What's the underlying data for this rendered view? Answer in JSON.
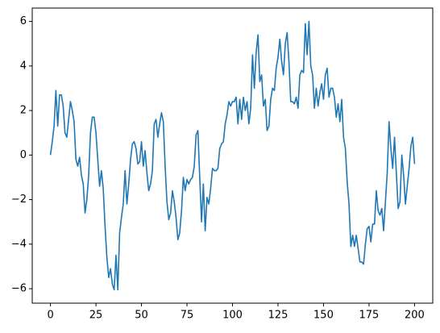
{
  "chart_data": {
    "type": "line",
    "color": "#1f77b4",
    "x": [
      0,
      1,
      2,
      3,
      4,
      5,
      6,
      7,
      8,
      9,
      10,
      11,
      12,
      13,
      14,
      15,
      16,
      17,
      18,
      19,
      20,
      21,
      22,
      23,
      24,
      25,
      26,
      27,
      28,
      29,
      30,
      31,
      32,
      33,
      34,
      35,
      36,
      37,
      38,
      39,
      40,
      41,
      42,
      43,
      44,
      45,
      46,
      47,
      48,
      49,
      50,
      51,
      52,
      53,
      54,
      55,
      56,
      57,
      58,
      59,
      60,
      61,
      62,
      63,
      64,
      65,
      66,
      67,
      68,
      69,
      70,
      71,
      72,
      73,
      74,
      75,
      76,
      77,
      78,
      79,
      80,
      81,
      82,
      83,
      84,
      85,
      86,
      87,
      88,
      89,
      90,
      91,
      92,
      93,
      94,
      95,
      96,
      97,
      98,
      99,
      100,
      101,
      102,
      103,
      104,
      105,
      106,
      107,
      108,
      109,
      110,
      111,
      112,
      113,
      114,
      115,
      116,
      117,
      118,
      119,
      120,
      121,
      122,
      123,
      124,
      125,
      126,
      127,
      128,
      129,
      130,
      131,
      132,
      133,
      134,
      135,
      136,
      137,
      138,
      139,
      140,
      141,
      142,
      143,
      144,
      145,
      146,
      147,
      148,
      149,
      150,
      151,
      152,
      153,
      154,
      155,
      156,
      157,
      158,
      159,
      160,
      161,
      162,
      163,
      164,
      165,
      166,
      167,
      168,
      169,
      170,
      171,
      172,
      173,
      174,
      175,
      176,
      177,
      178,
      179,
      180,
      181,
      182,
      183,
      184,
      185,
      186,
      187,
      188,
      189,
      190,
      191,
      192,
      193,
      194,
      195,
      196,
      197,
      198,
      199,
      200
    ],
    "values": [
      0,
      0.6,
      1.3,
      2.9,
      1.3,
      2.7,
      2.7,
      2.2,
      1.0,
      0.8,
      1.6,
      2.4,
      2.0,
      1.5,
      -0.2,
      -0.5,
      -0.1,
      -0.9,
      -1.3,
      -2.6,
      -2.0,
      -0.9,
      1.0,
      1.7,
      1.7,
      1.0,
      -0.2,
      -1.4,
      -0.7,
      -1.5,
      -3.2,
      -4.6,
      -5.5,
      -5.1,
      -5.8,
      -6.05,
      -4.5,
      -6.05,
      -3.5,
      -2.8,
      -2.2,
      -0.7,
      -2.2,
      -1.3,
      -0.2,
      0.5,
      0.6,
      0.3,
      -0.4,
      -0.3,
      0.6,
      -0.5,
      0.2,
      -0.8,
      -1.6,
      -1.3,
      -0.7,
      1.4,
      1.6,
      0.8,
      1.4,
      1.9,
      1.5,
      -0.5,
      -2.1,
      -2.9,
      -2.6,
      -1.6,
      -2.1,
      -2.8,
      -3.8,
      -3.5,
      -2.5,
      -1.0,
      -1.6,
      -1.1,
      -1.3,
      -1.1,
      -1.0,
      -0.5,
      0.9,
      1.1,
      -1.0,
      -3.0,
      -1.3,
      -3.4,
      -1.9,
      -2.2,
      -1.5,
      -0.6,
      -0.7,
      -0.7,
      -0.6,
      0.3,
      0.5,
      0.6,
      1.4,
      1.8,
      2.4,
      2.2,
      2.4,
      2.4,
      2.6,
      1.4,
      2.5,
      1.6,
      2.6,
      2.0,
      2.4,
      1.4,
      2.1,
      4.5,
      3.0,
      4.6,
      5.4,
      3.3,
      3.6,
      2.2,
      2.5,
      1.1,
      1.3,
      2.5,
      3.0,
      2.9,
      3.9,
      4.4,
      5.2,
      4.2,
      3.6,
      5.0,
      5.5,
      4.2,
      2.4,
      2.4,
      2.3,
      2.6,
      2.1,
      3.6,
      3.8,
      3.7,
      5.9,
      4.5,
      6.0,
      4.0,
      3.6,
      2.1,
      3.0,
      2.2,
      2.8,
      3.2,
      2.5,
      3.6,
      3.9,
      2.6,
      3.0,
      3.0,
      2.6,
      1.7,
      2.3,
      1.5,
      2.5,
      0.8,
      0.3,
      -1.2,
      -2.2,
      -4.1,
      -3.6,
      -4.1,
      -3.6,
      -4.2,
      -4.8,
      -4.8,
      -4.9,
      -4.0,
      -3.3,
      -3.2,
      -3.9,
      -3.1,
      -3.1,
      -1.6,
      -2.5,
      -2.7,
      -2.4,
      -3.4,
      -2.1,
      -0.8,
      1.5,
      0.3,
      -0.6,
      0.8,
      -0.8,
      -2.4,
      -2.1,
      0.0,
      -0.9,
      -2.2,
      -1.4,
      -0.6,
      0.4,
      0.8,
      -0.4
    ],
    "xlim": [
      -10,
      210
    ],
    "xticks": [
      0,
      25,
      50,
      75,
      100,
      125,
      150,
      175,
      200
    ],
    "ylim": [
      -6.65,
      6.6
    ],
    "yticks": [
      {
        "value": -6,
        "label": "−6"
      },
      {
        "value": -4,
        "label": "−4"
      },
      {
        "value": -2,
        "label": "−2"
      },
      0,
      2,
      4,
      6
    ]
  }
}
